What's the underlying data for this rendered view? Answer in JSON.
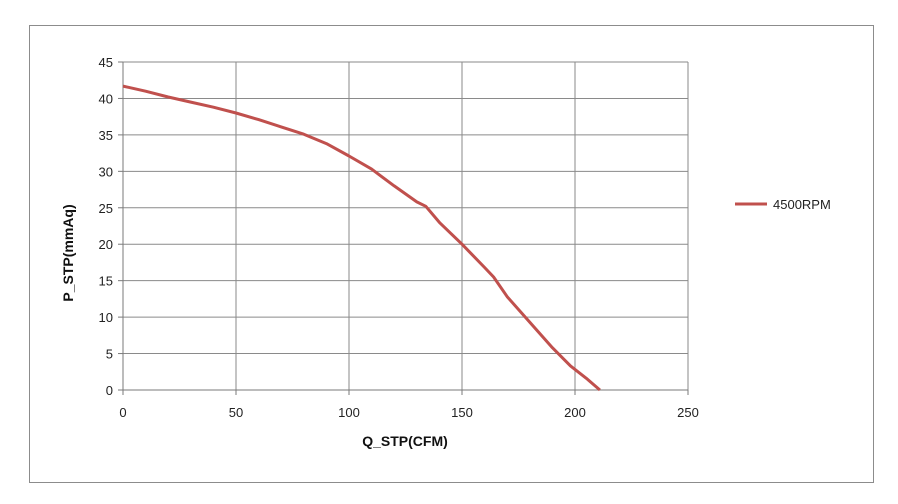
{
  "chart_data": {
    "type": "line",
    "title": "",
    "xlabel": "Q_STP(CFM)",
    "ylabel": "P_STP(mmAq)",
    "xlim": [
      0,
      250
    ],
    "ylim": [
      0,
      45
    ],
    "xticks": [
      0,
      50,
      100,
      150,
      200,
      250
    ],
    "yticks": [
      0,
      5,
      10,
      15,
      20,
      25,
      30,
      35,
      40,
      45
    ],
    "grid": true,
    "legend": "right",
    "series": [
      {
        "name": "4500RPM",
        "color": "#c0504d",
        "x": [
          0,
          10,
          20,
          30,
          40,
          50,
          60,
          70,
          80,
          90,
          100,
          110,
          120,
          130,
          134,
          140,
          150,
          160,
          164,
          170,
          180,
          190,
          198,
          205,
          211
        ],
        "y": [
          41.7,
          41.0,
          40.2,
          39.5,
          38.8,
          38.0,
          37.1,
          36.1,
          35.1,
          33.8,
          32.1,
          30.3,
          28.0,
          25.8,
          25.2,
          23.0,
          20.0,
          16.8,
          15.5,
          12.8,
          9.3,
          5.8,
          3.3,
          1.6,
          0.0
        ]
      }
    ]
  }
}
